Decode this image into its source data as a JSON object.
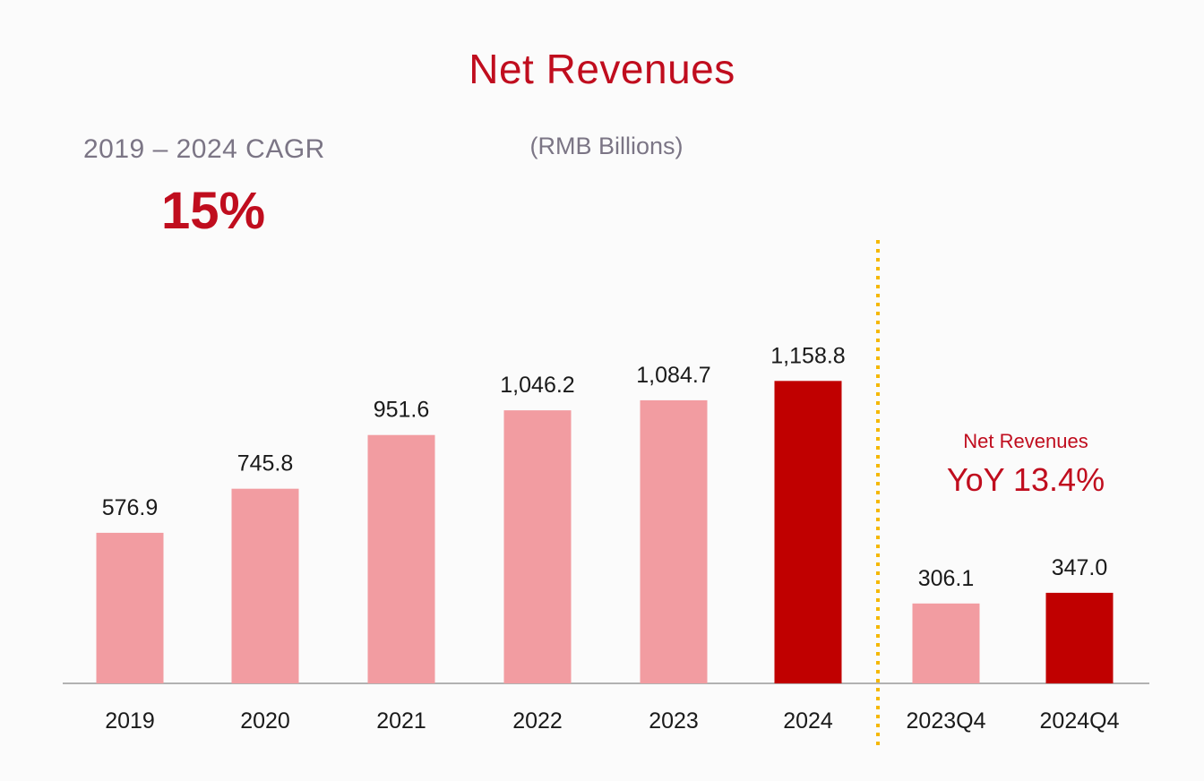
{
  "chart_data": {
    "type": "bar",
    "title": "Net Revenues",
    "subtitle": "(RMB Billions)",
    "xlabel": "",
    "ylabel": "",
    "ylim": [
      0,
      1250
    ],
    "grid": false,
    "groups": [
      {
        "name": "annual",
        "categories": [
          "2019",
          "2020",
          "2021",
          "2022",
          "2023",
          "2024"
        ],
        "values": [
          576.9,
          745.8,
          951.6,
          1046.2,
          1084.7,
          1158.8
        ],
        "value_labels": [
          "576.9",
          "745.8",
          "951.6",
          "1,046.2",
          "1,084.7",
          "1,158.8"
        ],
        "highlight": [
          false,
          false,
          false,
          false,
          false,
          true
        ]
      },
      {
        "name": "quarterly",
        "categories": [
          "2023Q4",
          "2024Q4"
        ],
        "values": [
          306.1,
          347.0
        ],
        "value_labels": [
          "306.1",
          "347.0"
        ],
        "highlight": [
          false,
          true
        ]
      }
    ],
    "annotations": {
      "cagr_label": "2019 – 2024 CAGR",
      "cagr_value": "15%",
      "yoy_label": "Net Revenues",
      "yoy_value": "YoY 13.4%"
    }
  },
  "colors": {
    "normal_bar": "#f29ca1",
    "highlight_bar": "#c00000",
    "accent_text": "#c00d1e",
    "muted_text": "#7b7585",
    "divider": "#f5b800",
    "axis": "#999999"
  }
}
